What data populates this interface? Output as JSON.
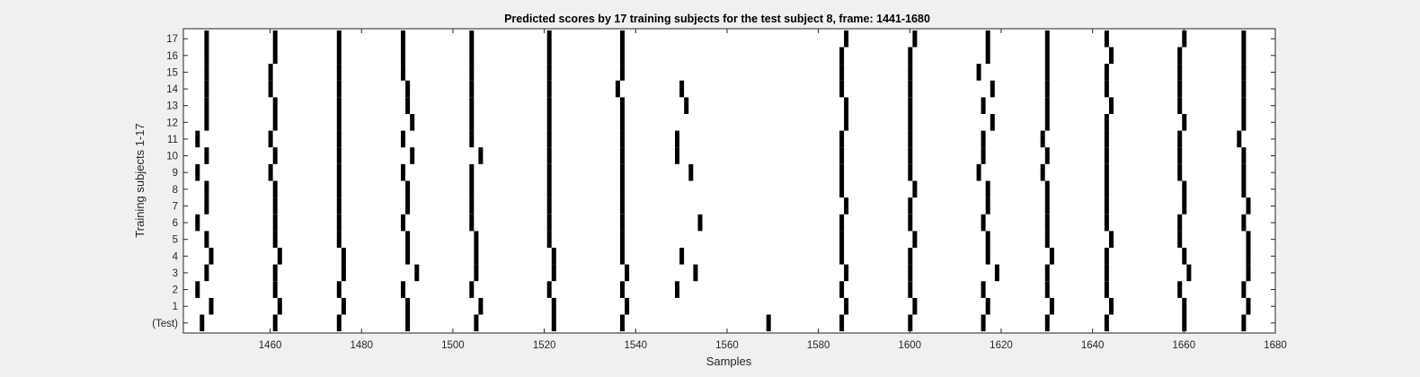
{
  "chart_data": {
    "type": "scatter",
    "title": "Predicted scores by 17 training subjects for the test subject 8, frame: 1441-1680",
    "xlabel": "Samples",
    "ylabel": "Training subjects 1-17",
    "xlim": [
      1441,
      1680
    ],
    "xticks": [
      1460,
      1480,
      1500,
      1520,
      1540,
      1560,
      1580,
      1600,
      1620,
      1640,
      1660,
      1680
    ],
    "yticks": [
      "(Test)",
      "1",
      "2",
      "3",
      "4",
      "5",
      "6",
      "7",
      "8",
      "9",
      "10",
      "11",
      "12",
      "13",
      "14",
      "15",
      "16",
      "17"
    ],
    "grid": false,
    "mark_colors": {
      "background": "#ffffff",
      "mark": "#000000",
      "figure": "#f0f0f0"
    },
    "series": [
      {
        "label": "(Test)",
        "values": [
          1445,
          1461,
          1475,
          1490,
          1505,
          1522,
          1537,
          1569,
          1585,
          1600,
          1616,
          1630,
          1643,
          1660,
          1673
        ]
      },
      {
        "label": "1",
        "values": [
          1447,
          1462,
          1476,
          1490,
          1506,
          1522,
          1538,
          1586,
          1601,
          1617,
          1631,
          1644,
          1660,
          1674
        ]
      },
      {
        "label": "2",
        "values": [
          1444,
          1461,
          1475,
          1489,
          1504,
          1521,
          1537,
          1549,
          1585,
          1600,
          1616,
          1630,
          1643,
          1659,
          1673
        ]
      },
      {
        "label": "3",
        "values": [
          1446,
          1461,
          1476,
          1492,
          1505,
          1522,
          1538,
          1553,
          1586,
          1600,
          1619,
          1630,
          1643,
          1661,
          1674
        ]
      },
      {
        "label": "4",
        "values": [
          1447,
          1462,
          1476,
          1490,
          1505,
          1522,
          1537,
          1550,
          1585,
          1600,
          1617,
          1631,
          1643,
          1660,
          1674
        ]
      },
      {
        "label": "5",
        "values": [
          1446,
          1461,
          1475,
          1490,
          1505,
          1521,
          1537,
          1585,
          1601,
          1617,
          1630,
          1644,
          1659,
          1674
        ]
      },
      {
        "label": "6",
        "values": [
          1444,
          1461,
          1475,
          1489,
          1504,
          1521,
          1537,
          1554,
          1585,
          1600,
          1616,
          1630,
          1643,
          1659,
          1673
        ]
      },
      {
        "label": "7",
        "values": [
          1446,
          1461,
          1475,
          1490,
          1504,
          1521,
          1537,
          1586,
          1600,
          1617,
          1630,
          1643,
          1660,
          1674
        ]
      },
      {
        "label": "8",
        "values": [
          1446,
          1461,
          1475,
          1490,
          1504,
          1521,
          1537,
          1585,
          1601,
          1617,
          1630,
          1643,
          1660,
          1673
        ]
      },
      {
        "label": "9",
        "values": [
          1444,
          1460,
          1475,
          1489,
          1504,
          1521,
          1537,
          1552,
          1585,
          1600,
          1615,
          1629,
          1643,
          1659,
          1673
        ]
      },
      {
        "label": "10",
        "values": [
          1446,
          1461,
          1475,
          1491,
          1506,
          1521,
          1537,
          1549,
          1585,
          1600,
          1616,
          1630,
          1643,
          1659,
          1673
        ]
      },
      {
        "label": "11",
        "values": [
          1444,
          1460,
          1475,
          1489,
          1504,
          1521,
          1537,
          1549,
          1585,
          1600,
          1616,
          1629,
          1643,
          1659,
          1672
        ]
      },
      {
        "label": "12",
        "values": [
          1446,
          1461,
          1475,
          1491,
          1504,
          1521,
          1537,
          1586,
          1600,
          1618,
          1630,
          1643,
          1660,
          1673
        ]
      },
      {
        "label": "13",
        "values": [
          1446,
          1461,
          1475,
          1490,
          1504,
          1521,
          1537,
          1551,
          1586,
          1600,
          1616,
          1630,
          1644,
          1659,
          1673
        ]
      },
      {
        "label": "14",
        "values": [
          1446,
          1460,
          1475,
          1490,
          1504,
          1521,
          1536,
          1550,
          1585,
          1600,
          1618,
          1630,
          1643,
          1659,
          1673
        ]
      },
      {
        "label": "15",
        "values": [
          1446,
          1460,
          1475,
          1489,
          1504,
          1521,
          1537,
          1585,
          1600,
          1615,
          1630,
          1643,
          1659,
          1673
        ]
      },
      {
        "label": "16",
        "values": [
          1446,
          1461,
          1475,
          1489,
          1504,
          1521,
          1537,
          1585,
          1600,
          1617,
          1630,
          1644,
          1659,
          1673
        ]
      },
      {
        "label": "17",
        "values": [
          1446,
          1461,
          1475,
          1489,
          1504,
          1521,
          1537,
          1586,
          1601,
          1617,
          1630,
          1643,
          1660,
          1673
        ]
      }
    ]
  }
}
